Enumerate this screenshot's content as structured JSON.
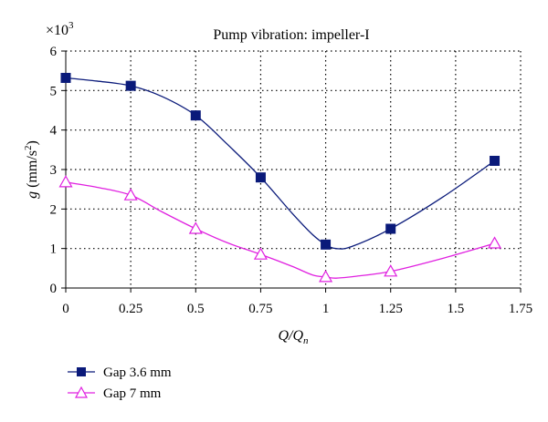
{
  "chart_data": {
    "type": "line",
    "title": "Pump vibration: impeller-I",
    "scale_note": {
      "prefix": "×10",
      "exponent": "3"
    },
    "xlabel": {
      "main": "Q/Q",
      "sub": "n"
    },
    "ylabel": {
      "var": "g",
      "unit_pre": "(mm/s",
      "unit_exp": "2",
      "unit_post": ")"
    },
    "xlim": [
      0,
      1.75
    ],
    "ylim": [
      0,
      6
    ],
    "x_ticks": [
      0,
      0.25,
      0.5,
      0.75,
      1,
      1.25,
      1.5,
      1.75
    ],
    "x_tick_labels": [
      "0",
      "0.25",
      "0.5",
      "0.75",
      "1",
      "1.25",
      "1.5",
      "1.75"
    ],
    "y_ticks": [
      0,
      1,
      2,
      3,
      4,
      5,
      6
    ],
    "y_tick_labels": [
      "0",
      "1",
      "2",
      "3",
      "4",
      "5",
      "6"
    ],
    "grid": "dotted",
    "legend_position": "bottom-left",
    "series": [
      {
        "name": "Gap 3.6 mm",
        "color": "#0a1a7a",
        "marker": "square",
        "x": [
          0,
          0.25,
          0.5,
          0.75,
          1,
          1.25,
          1.65
        ],
        "values": [
          5.32,
          5.12,
          4.37,
          2.8,
          1.1,
          1.5,
          3.22
        ],
        "curve": [
          [
            0,
            5.32
          ],
          [
            0.12,
            5.24
          ],
          [
            0.25,
            5.12
          ],
          [
            0.37,
            4.85
          ],
          [
            0.5,
            4.37
          ],
          [
            0.62,
            3.65
          ],
          [
            0.75,
            2.8
          ],
          [
            0.87,
            1.9
          ],
          [
            0.95,
            1.35
          ],
          [
            1,
            1.1
          ],
          [
            1.04,
            1.0
          ],
          [
            1.1,
            1.05
          ],
          [
            1.25,
            1.5
          ],
          [
            1.45,
            2.3
          ],
          [
            1.65,
            3.22
          ]
        ]
      },
      {
        "name": "Gap 7 mm",
        "color": "#e020e0",
        "marker": "triangle",
        "x": [
          0,
          0.25,
          0.5,
          0.75,
          1,
          1.25,
          1.65
        ],
        "values": [
          2.68,
          2.35,
          1.5,
          0.85,
          0.28,
          0.42,
          1.13
        ],
        "curve": [
          [
            0,
            2.68
          ],
          [
            0.12,
            2.55
          ],
          [
            0.25,
            2.35
          ],
          [
            0.37,
            1.93
          ],
          [
            0.5,
            1.5
          ],
          [
            0.62,
            1.15
          ],
          [
            0.75,
            0.85
          ],
          [
            0.87,
            0.55
          ],
          [
            0.95,
            0.33
          ],
          [
            1,
            0.28
          ],
          [
            1.04,
            0.25
          ],
          [
            1.12,
            0.3
          ],
          [
            1.25,
            0.42
          ],
          [
            1.45,
            0.75
          ],
          [
            1.65,
            1.13
          ]
        ]
      }
    ]
  }
}
